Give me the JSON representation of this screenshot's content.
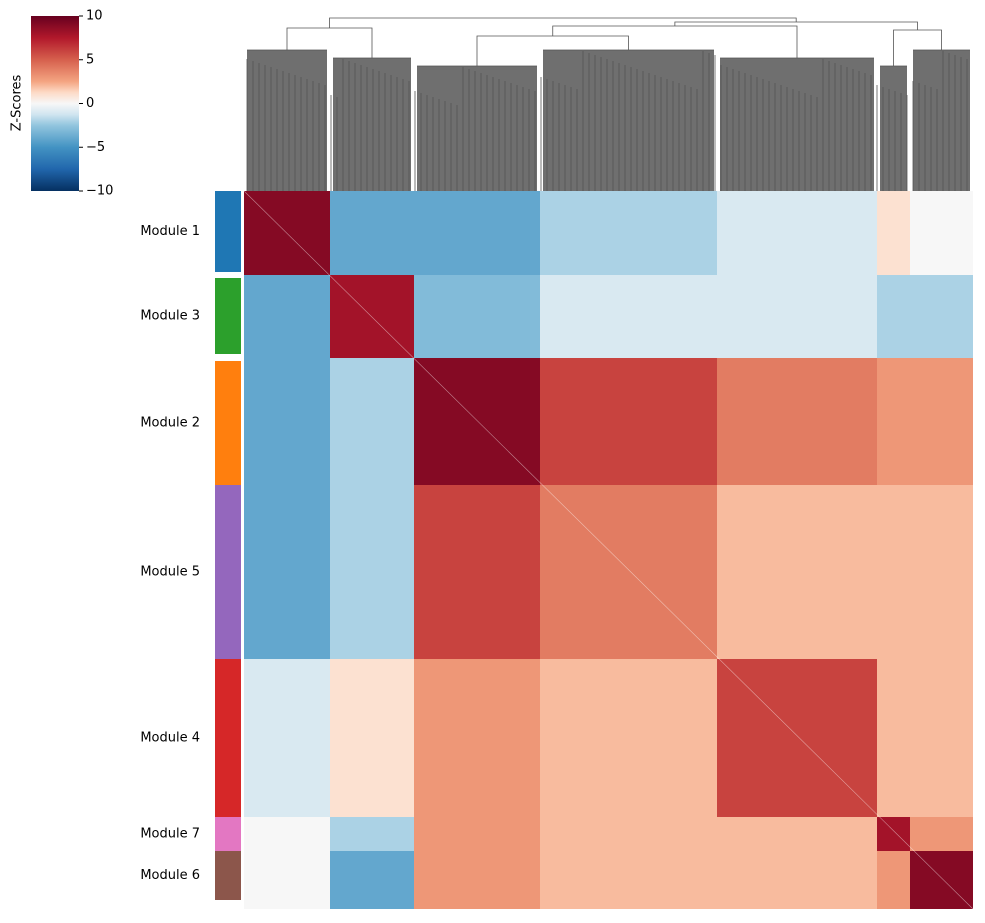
{
  "chart_data": {
    "type": "heatmap",
    "colorbar_label": "Z-Scores",
    "clim": [
      -10,
      10
    ],
    "cticks": [
      {
        "value": -10,
        "label": "−10"
      },
      {
        "value": -5,
        "label": "−5"
      },
      0,
      5,
      10
    ],
    "modules": [
      {
        "name": "Module 1",
        "color": "#1f77b4"
      },
      {
        "name": "Module 3",
        "color": "#2ca02c"
      },
      {
        "name": "Module 2",
        "color": "#ff7f0e"
      },
      {
        "name": "Module 5",
        "color": "#9467bd"
      },
      {
        "name": "Module 4",
        "color": "#d62728"
      },
      {
        "name": "Module 7",
        "color": "#e377c2"
      },
      {
        "name": "Module 6",
        "color": "#8c564b"
      }
    ],
    "matrix": [
      [
        9,
        -4,
        -4,
        -2,
        -1,
        1,
        0
      ],
      [
        -4,
        8,
        -3,
        -1,
        -1,
        -2,
        -2
      ],
      [
        -4,
        -2,
        9,
        6,
        4,
        3,
        3
      ],
      [
        -4,
        -2,
        6,
        4,
        2,
        2,
        2
      ],
      [
        -1,
        1,
        3,
        2,
        6,
        2,
        2
      ],
      [
        0,
        -2,
        3,
        2,
        2,
        8,
        3
      ],
      [
        0,
        -4,
        3,
        2,
        2,
        3,
        9
      ]
    ]
  }
}
